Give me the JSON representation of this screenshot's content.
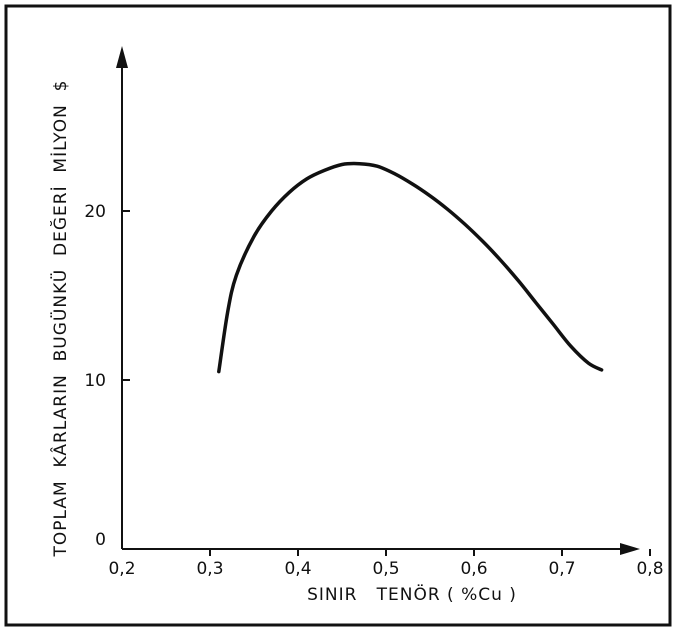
{
  "chart_data": {
    "type": "line",
    "title": "",
    "xlabel": "SINIR   TENÖR ( %Cu )",
    "ylabel": "TOPLAM  KÂRLARIN  BUGÜNKÜ  DEĞERİ  MİLYON  $",
    "xlim": [
      0.2,
      0.9
    ],
    "ylim": [
      0,
      30
    ],
    "x_ticks": [
      "0,2",
      "0,3",
      "0,4",
      "0,5",
      "0,6",
      "0,7",
      "0,8"
    ],
    "y_ticks": [
      "0",
      "10",
      "20"
    ],
    "grid": false,
    "series": [
      {
        "x": [
          0.31,
          0.32,
          0.33,
          0.35,
          0.37,
          0.39,
          0.41,
          0.43,
          0.45,
          0.47,
          0.49,
          0.51,
          0.53,
          0.55,
          0.57,
          0.59,
          0.61,
          0.63,
          0.65,
          0.67,
          0.69,
          0.71,
          0.73,
          0.745
        ],
        "values": [
          10.5,
          14.0,
          16.2,
          18.5,
          20.0,
          21.1,
          21.9,
          22.4,
          22.75,
          22.8,
          22.65,
          22.2,
          21.6,
          20.9,
          20.1,
          19.2,
          18.2,
          17.1,
          15.9,
          14.6,
          13.3,
          12.0,
          11.0,
          10.6
        ]
      }
    ]
  }
}
